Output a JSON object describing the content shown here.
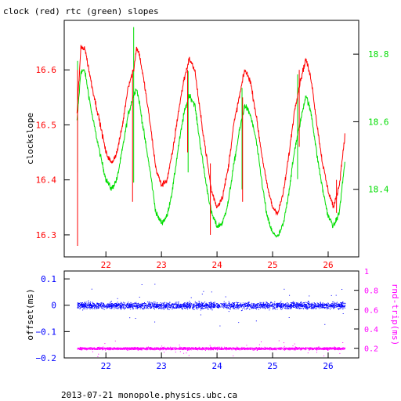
{
  "header": {
    "title": "clock (red) rtc (green) slopes"
  },
  "footer": {
    "caption": "2013-07-21 monopole.physics.ubc.ca"
  },
  "colors": {
    "clock": "#ff0000",
    "rtc": "#00dd00",
    "offset": "#0000ff",
    "roundtrip": "#ff00ff",
    "axis": "#000000"
  },
  "chart_data": [
    {
      "type": "line",
      "title": "clock (red) rtc (green) slopes",
      "ylabel": "clockslope",
      "x_ticks": [
        22,
        23,
        24,
        25,
        26
      ],
      "xlim": [
        21.25,
        26.55
      ],
      "ylim": [
        16.26,
        16.69
      ],
      "y_ticks": [
        16.3,
        16.4,
        16.5,
        16.6
      ],
      "y_ticks_right": [
        18.4,
        18.6,
        18.8
      ],
      "ylim_right": [
        18.2,
        18.9
      ],
      "series": [
        {
          "name": "clock",
          "axis": "left",
          "x": [
            21.48,
            21.55,
            21.62,
            21.75,
            21.9,
            22.0,
            22.1,
            22.2,
            22.3,
            22.4,
            22.5,
            22.55,
            22.6,
            22.7,
            22.8,
            22.9,
            23.0,
            23.1,
            23.2,
            23.3,
            23.4,
            23.5,
            23.6,
            23.7,
            23.8,
            23.9,
            24.0,
            24.1,
            24.2,
            24.3,
            24.4,
            24.5,
            24.6,
            24.7,
            24.8,
            24.9,
            25.0,
            25.1,
            25.2,
            25.3,
            25.4,
            25.5,
            25.6,
            25.7,
            25.8,
            25.9,
            26.0,
            26.1,
            26.2,
            26.3
          ],
          "y": [
            16.52,
            16.64,
            16.64,
            16.57,
            16.5,
            16.45,
            16.43,
            16.45,
            16.5,
            16.57,
            16.6,
            16.64,
            16.63,
            16.57,
            16.5,
            16.42,
            16.39,
            16.4,
            16.45,
            16.52,
            16.58,
            16.62,
            16.6,
            16.52,
            16.45,
            16.38,
            16.35,
            16.37,
            16.42,
            16.5,
            16.55,
            16.6,
            16.58,
            16.52,
            16.45,
            16.39,
            16.35,
            16.34,
            16.38,
            16.45,
            16.53,
            16.58,
            16.62,
            16.58,
            16.5,
            16.43,
            16.38,
            16.35,
            16.39,
            16.48
          ]
        },
        {
          "name": "rtc",
          "axis": "right",
          "x": [
            21.48,
            21.55,
            21.62,
            21.75,
            21.9,
            22.0,
            22.1,
            22.2,
            22.3,
            22.4,
            22.5,
            22.55,
            22.6,
            22.7,
            22.8,
            22.9,
            23.0,
            23.1,
            23.2,
            23.3,
            23.4,
            23.5,
            23.6,
            23.7,
            23.8,
            23.9,
            24.0,
            24.1,
            24.2,
            24.3,
            24.4,
            24.5,
            24.6,
            24.7,
            24.8,
            24.9,
            25.0,
            25.1,
            25.2,
            25.3,
            25.4,
            25.5,
            25.6,
            25.7,
            25.8,
            25.9,
            26.0,
            26.1,
            26.2,
            26.3
          ],
          "y": [
            18.6,
            18.75,
            18.75,
            18.62,
            18.5,
            18.43,
            18.4,
            18.43,
            18.52,
            18.62,
            18.68,
            18.7,
            18.66,
            18.55,
            18.45,
            18.33,
            18.3,
            18.32,
            18.4,
            18.52,
            18.62,
            18.68,
            18.65,
            18.53,
            18.42,
            18.33,
            18.29,
            18.3,
            18.36,
            18.47,
            18.57,
            18.65,
            18.62,
            18.55,
            18.43,
            18.32,
            18.27,
            18.26,
            18.3,
            18.4,
            18.52,
            18.6,
            18.68,
            18.62,
            18.5,
            18.4,
            18.32,
            18.29,
            18.33,
            18.48
          ]
        }
      ]
    },
    {
      "type": "scatter",
      "ylabel": "offset(ms)",
      "ylabel_right": "rnd-trip(ms)",
      "x_ticks": [
        22,
        23,
        24,
        25,
        26
      ],
      "xlim": [
        21.25,
        26.55
      ],
      "ylim": [
        -0.2,
        0.13
      ],
      "y_ticks": [
        0.1,
        0,
        -0.1,
        -0.2
      ],
      "y_tick_labels": [
        "0.1",
        "0",
        "−0.1",
        "−0.2"
      ],
      "ylim_right": [
        0.1,
        1.0
      ],
      "y_ticks_right": [
        0.2,
        0.4,
        0.6,
        0.8,
        1
      ],
      "series": [
        {
          "name": "offset",
          "axis": "left",
          "x_range": [
            21.48,
            26.3
          ],
          "center": 0.0,
          "spread": 0.012
        },
        {
          "name": "rnd-trip",
          "axis": "right",
          "x_range": [
            21.48,
            26.3
          ],
          "center": 0.2,
          "spread": 0.012
        }
      ]
    }
  ]
}
